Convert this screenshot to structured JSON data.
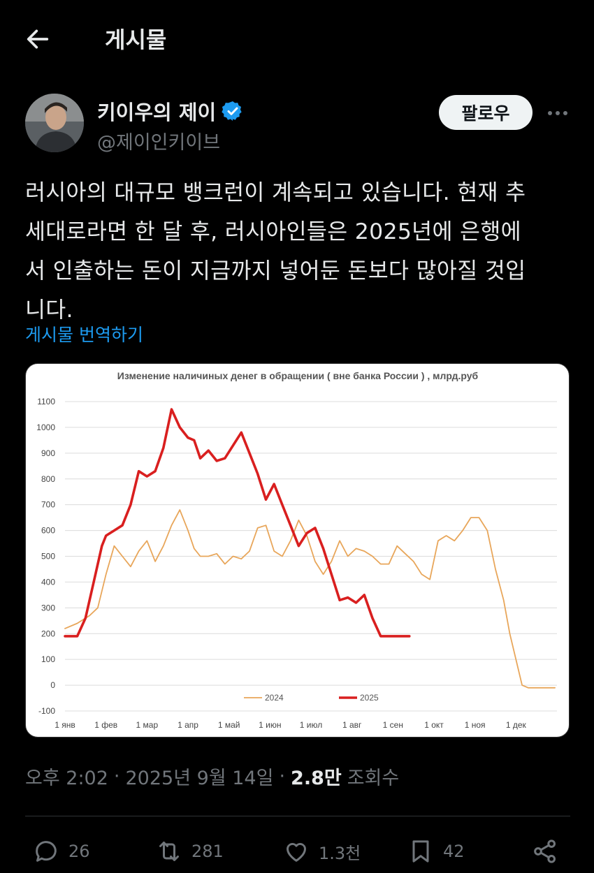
{
  "header": {
    "title": "게시물"
  },
  "author": {
    "display_name": "키이우의 제이",
    "handle": "@제이인키이브",
    "follow_label": "팔로우"
  },
  "tweet": {
    "text": "러시아의 대규모 뱅크런이 계속되고 있습니다. 현재 추\n세대로라면 한 달 후, 러시아인들은 2025년에 은행에\n서 인출하는 돈이 지금까지 넣어둔 돈보다 많아질 것입\n니다.",
    "translate_label": "게시물 번역하기"
  },
  "meta": {
    "time": "오후 2:02",
    "sep1": "·",
    "date": "2025년 9월 14일",
    "sep2": "·",
    "views_count": "2.8만",
    "views_label": "조회수"
  },
  "actions": {
    "replies": "26",
    "retweets": "281",
    "likes": "1.3천",
    "bookmarks": "42"
  },
  "colors": {
    "accent": "#1d9bf0",
    "series_2024": "#e8a65a",
    "series_2025": "#d91f1f"
  },
  "chart_data": {
    "type": "line",
    "title": "Изменение наличиных денег в обращении ( вне банка России ) , млрд.руб",
    "ylim": [
      -100,
      1100
    ],
    "yticks": [
      "1100",
      "1000",
      "900",
      "800",
      "700",
      "600",
      "500",
      "400",
      "300",
      "200",
      "100",
      "0",
      "-100"
    ],
    "xticks": [
      "1 янв",
      "1 фев",
      "1 мар",
      "1 апр",
      "1 май",
      "1 июн",
      "1 июл",
      "1 авг",
      "1 сен",
      "1 окт",
      "1 ноя",
      "1 дек"
    ],
    "grid": true,
    "legend_position": "bottom",
    "series": [
      {
        "name": "2024",
        "x": [
          0,
          0.3,
          0.6,
          0.8,
          1.0,
          1.2,
          1.4,
          1.6,
          1.8,
          2.0,
          2.2,
          2.4,
          2.6,
          2.8,
          3.0,
          3.15,
          3.3,
          3.5,
          3.7,
          3.9,
          4.1,
          4.3,
          4.5,
          4.7,
          4.9,
          5.1,
          5.3,
          5.5,
          5.7,
          5.9,
          6.1,
          6.3,
          6.5,
          6.7,
          6.9,
          7.1,
          7.3,
          7.5,
          7.7,
          7.9,
          8.1,
          8.3,
          8.5,
          8.7,
          8.9,
          9.1,
          9.3,
          9.5,
          9.7,
          9.9,
          10.1,
          10.3,
          10.5,
          10.7,
          10.85,
          11.0,
          11.15,
          11.3,
          11.45,
          11.6,
          11.75,
          11.85,
          11.95
        ],
        "y": [
          220,
          240,
          270,
          300,
          430,
          540,
          500,
          460,
          520,
          560,
          480,
          540,
          620,
          680,
          600,
          530,
          500,
          500,
          510,
          470,
          500,
          490,
          520,
          610,
          620,
          520,
          500,
          560,
          640,
          580,
          480,
          430,
          480,
          560,
          500,
          530,
          520,
          500,
          470,
          470,
          540,
          510,
          480,
          430,
          410,
          560,
          580,
          560,
          600,
          650,
          650,
          600,
          450,
          330,
          200,
          100,
          0,
          -10,
          -10,
          -10,
          -10,
          -10,
          -10
        ]
      },
      {
        "name": "2025",
        "x": [
          0,
          0.3,
          0.5,
          0.7,
          0.9,
          1.0,
          1.2,
          1.4,
          1.6,
          1.8,
          2.0,
          2.2,
          2.4,
          2.6,
          2.8,
          3.0,
          3.15,
          3.3,
          3.5,
          3.7,
          3.9,
          4.1,
          4.3,
          4.5,
          4.7,
          4.9,
          5.1,
          5.3,
          5.5,
          5.7,
          5.9,
          6.1,
          6.3,
          6.5,
          6.7,
          6.9,
          7.1,
          7.3,
          7.5,
          7.7,
          7.9,
          8.1,
          8.3,
          8.4
        ],
        "y": [
          190,
          190,
          260,
          400,
          540,
          580,
          600,
          620,
          700,
          830,
          810,
          830,
          920,
          1070,
          1000,
          960,
          950,
          880,
          910,
          870,
          880,
          930,
          980,
          900,
          820,
          720,
          780,
          700,
          620,
          540,
          590,
          610,
          530,
          430,
          330,
          340,
          320,
          350,
          260,
          190,
          190,
          190,
          190,
          190
        ]
      }
    ]
  }
}
